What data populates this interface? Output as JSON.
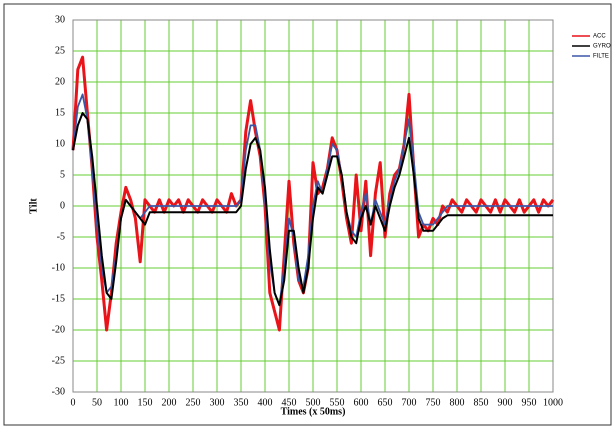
{
  "chart_data": {
    "type": "line",
    "x_label": "Times (x 50ms)",
    "y_label": "Tilt",
    "x": [
      0,
      10,
      20,
      30,
      40,
      50,
      60,
      70,
      80,
      90,
      100,
      110,
      120,
      130,
      140,
      150,
      160,
      170,
      180,
      190,
      200,
      210,
      220,
      230,
      240,
      250,
      260,
      270,
      280,
      290,
      300,
      310,
      320,
      330,
      340,
      350,
      360,
      370,
      380,
      390,
      400,
      410,
      420,
      430,
      440,
      450,
      460,
      470,
      480,
      490,
      500,
      510,
      520,
      530,
      540,
      550,
      560,
      570,
      580,
      590,
      600,
      610,
      620,
      630,
      640,
      650,
      660,
      670,
      680,
      690,
      700,
      710,
      720,
      730,
      740,
      750,
      760,
      770,
      780,
      790,
      800,
      810,
      820,
      830,
      840,
      850,
      860,
      870,
      880,
      890,
      900,
      910,
      920,
      930,
      940,
      950,
      960,
      970,
      980,
      990,
      1000
    ],
    "series": [
      {
        "name": "ACC",
        "color": "#e8141a",
        "values": [
          9,
          22,
          24,
          15,
          6,
          -5,
          -12,
          -20,
          -14,
          -6,
          -1,
          3,
          1,
          -2,
          -9,
          1,
          0,
          -1,
          1,
          -1,
          1,
          0,
          1,
          -1,
          1,
          0,
          -1,
          1,
          0,
          -1,
          1,
          0,
          -1,
          2,
          0,
          1,
          12,
          17,
          12,
          8,
          0,
          -14,
          -17,
          -20,
          -8,
          4,
          -6,
          -12,
          -14,
          -10,
          7,
          2,
          3,
          6,
          11,
          9,
          4,
          -2,
          -6,
          5,
          -4,
          4,
          -8,
          2,
          7,
          -5,
          2,
          5,
          6,
          10,
          18,
          6,
          -5,
          -3,
          -4,
          -2,
          -3,
          0,
          -1,
          1,
          0,
          -1,
          1,
          0,
          -1,
          1,
          0,
          -1,
          1,
          -1,
          1,
          0,
          -1,
          1,
          -1,
          0,
          1,
          -1,
          1,
          0,
          1
        ]
      },
      {
        "name": "GYRO",
        "color": "#000000",
        "values": [
          9,
          13,
          15,
          14,
          8,
          0,
          -8,
          -14,
          -15,
          -9,
          -2,
          1,
          0,
          -1,
          -2,
          -3,
          -1,
          -1,
          -1,
          -1,
          -1,
          -1,
          -1,
          -1,
          -1,
          -1,
          -1,
          -1,
          -1,
          -1,
          -1,
          -1,
          -1,
          -1,
          -1,
          0,
          6,
          10,
          11,
          9,
          3,
          -7,
          -14,
          -16,
          -12,
          -4,
          -4,
          -10,
          -14,
          -10,
          -2,
          3,
          2,
          5,
          8,
          8,
          5,
          -1,
          -5,
          -6,
          -2,
          0,
          -3,
          0,
          -2,
          -4,
          0,
          3,
          5,
          8,
          11,
          5,
          -2,
          -4,
          -4,
          -4,
          -3,
          -2,
          -1.5,
          -1.5,
          -1.5,
          -1.5,
          -1.5,
          -1.5,
          -1.5,
          -1.5,
          -1.5,
          -1.5,
          -1.5,
          -1.5,
          -1.5,
          -1.5,
          -1.5,
          -1.5,
          -1.5,
          -1.5,
          -1.5,
          -1.5,
          -1.5,
          -1.5,
          -1.5
        ]
      },
      {
        "name": "FILTE",
        "color": "#3a56a6",
        "values": [
          9,
          16,
          18,
          14,
          6,
          -3,
          -10,
          -14,
          -13,
          -8,
          -2,
          1,
          0,
          -1,
          -2,
          -1,
          0,
          0,
          0,
          0,
          0,
          0,
          0,
          0,
          0,
          0,
          0,
          0,
          0,
          0,
          0,
          0,
          0,
          0,
          0,
          1,
          9,
          13,
          13,
          9,
          1,
          -9,
          -14,
          -16,
          -10,
          -2,
          -5,
          -12,
          -13,
          -8,
          0,
          4,
          2,
          6,
          10,
          9,
          5,
          -1,
          -4,
          -5,
          -1,
          2,
          -3,
          1,
          -1,
          -3,
          1,
          4,
          6,
          10,
          14,
          7,
          -1,
          -3,
          -3,
          -3,
          -2,
          -1,
          0,
          0,
          0,
          0,
          0,
          0,
          0,
          0,
          0,
          0,
          0,
          0,
          0,
          0,
          0,
          0,
          0,
          0,
          0,
          0,
          0,
          0,
          0
        ]
      }
    ],
    "xlim": [
      0,
      1000
    ],
    "xticks": [
      0,
      50,
      100,
      150,
      200,
      250,
      300,
      350,
      400,
      450,
      500,
      550,
      600,
      650,
      700,
      750,
      800,
      850,
      900,
      950,
      1000
    ],
    "ylim": [
      -30,
      30
    ],
    "yticks": [
      -30,
      -25,
      -20,
      -15,
      -10,
      -5,
      0,
      5,
      10,
      15,
      20,
      25,
      30
    ],
    "grid": true,
    "grid_color": "#66cc33",
    "legend": "right"
  }
}
